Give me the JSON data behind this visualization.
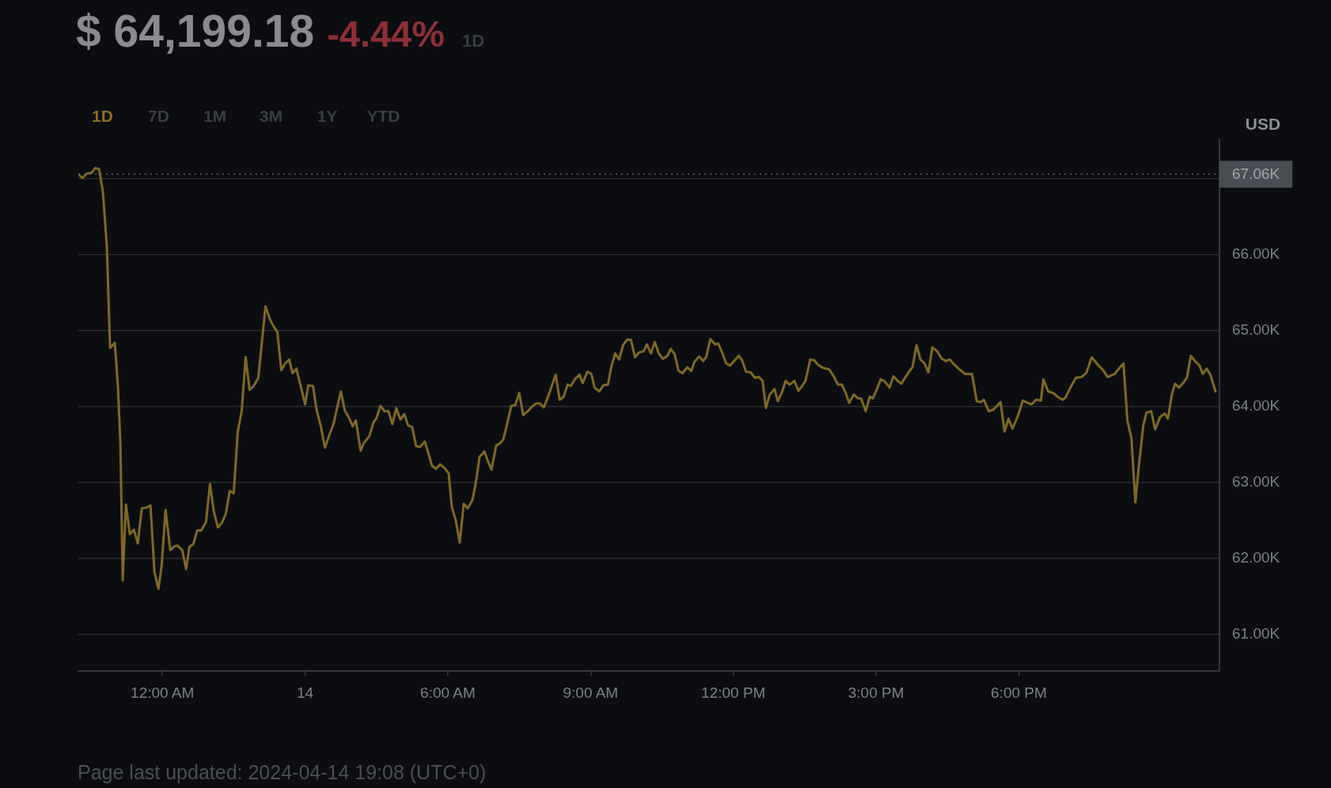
{
  "chart_data": {
    "type": "line",
    "title": "$ 64,199.18",
    "subtitle": "-4.44%",
    "ylabel": "USD",
    "annotations": [
      "1D",
      "1D",
      "7D",
      "1M",
      "3M",
      "1Y",
      "YTD",
      "Page last updated: 2024-04-14 19:08 (UTC+0)"
    ],
    "x": [
      "2024-04-13T22:14",
      "2024-04-13T22:19",
      "2024-04-13T22:25",
      "2024-04-13T22:31",
      "2024-04-13T22:35",
      "2024-04-13T22:40",
      "2024-04-13T22:45",
      "2024-04-13T22:50",
      "2024-04-13T22:54",
      "2024-04-13T23:00",
      "2024-04-13T23:04",
      "2024-04-13T23:07",
      "2024-04-13T23:10",
      "2024-04-13T23:14",
      "2024-04-13T23:19",
      "2024-04-13T23:24",
      "2024-04-13T23:29",
      "2024-04-13T23:34",
      "2024-04-13T23:40",
      "2024-04-13T23:45",
      "2024-04-13T23:50",
      "2024-04-13T23:55",
      "2024-04-13T23:59",
      "2024-04-14T00:04",
      "2024-04-14T00:10",
      "2024-04-14T00:15",
      "2024-04-14T00:19",
      "2024-04-14T00:25",
      "2024-04-14T00:30",
      "2024-04-14T00:34",
      "2024-04-14T00:39",
      "2024-04-14T00:44",
      "2024-04-14T00:49",
      "2024-04-14T00:55",
      "2024-04-14T01:00",
      "2024-04-14T01:05",
      "2024-04-14T01:10",
      "2024-04-14T01:15",
      "2024-04-14T01:20",
      "2024-04-14T01:25",
      "2024-04-14T01:30",
      "2024-04-14T01:35",
      "2024-04-14T01:40",
      "2024-04-14T01:45",
      "2024-04-14T01:50",
      "2024-04-14T01:55",
      "2024-04-14T02:01",
      "2024-04-14T02:10",
      "2024-04-14T02:16",
      "2024-04-14T02:20",
      "2024-04-14T02:25",
      "2024-04-14T02:30",
      "2024-04-14T02:35",
      "2024-04-14T02:40",
      "2024-04-14T02:44",
      "2024-04-14T02:49",
      "2024-04-14T02:54",
      "2024-04-14T03:00",
      "2024-04-14T03:04",
      "2024-04-14T03:10",
      "2024-04-14T03:14",
      "2024-04-14T03:20",
      "2024-04-14T03:25",
      "2024-04-14T03:30",
      "2024-04-14T03:36",
      "2024-04-14T03:45",
      "2024-04-14T03:50",
      "2024-04-14T03:55",
      "2024-04-14T04:00",
      "2024-04-14T04:04",
      "2024-04-14T04:10",
      "2024-04-14T04:14",
      "2024-04-14T04:21",
      "2024-04-14T04:26",
      "2024-04-14T04:30",
      "2024-04-14T04:35",
      "2024-04-14T04:40",
      "2024-04-14T04:45",
      "2024-04-14T04:50",
      "2024-04-14T04:55",
      "2024-04-14T05:00",
      "2024-04-14T05:05",
      "2024-04-14T05:10",
      "2024-04-14T05:15",
      "2024-04-14T05:20",
      "2024-04-14T05:25",
      "2024-04-14T05:31",
      "2024-04-14T05:35",
      "2024-04-14T05:40",
      "2024-04-14T05:45",
      "2024-04-14T05:50",
      "2024-04-14T05:56",
      "2024-04-14T06:01",
      "2024-04-14T06:05",
      "2024-04-14T06:10",
      "2024-04-14T06:15",
      "2024-04-14T06:20",
      "2024-04-14T06:25",
      "2024-04-14T06:31",
      "2024-04-14T06:35",
      "2024-04-14T06:40",
      "2024-04-14T06:44",
      "2024-04-14T06:46",
      "2024-04-14T06:51",
      "2024-04-14T06:55",
      "2024-04-14T07:01",
      "2024-04-14T07:05",
      "2024-04-14T07:10",
      "2024-04-14T07:14",
      "2024-04-14T07:20",
      "2024-04-14T07:25",
      "2024-04-14T07:30",
      "2024-04-14T07:35",
      "2024-04-14T07:41",
      "2024-04-14T07:46",
      "2024-04-14T07:51",
      "2024-04-14T07:56",
      "2024-04-14T08:01",
      "2024-04-14T08:06",
      "2024-04-14T08:11",
      "2024-04-14T08:16",
      "2024-04-14T08:21",
      "2024-04-14T08:26",
      "2024-04-14T08:31",
      "2024-04-14T08:35",
      "2024-04-14T08:40",
      "2024-04-14T08:46",
      "2024-04-14T08:50",
      "2024-04-14T08:56",
      "2024-04-14T09:01",
      "2024-04-14T09:05",
      "2024-04-14T09:11",
      "2024-04-14T09:16",
      "2024-04-14T09:22",
      "2024-04-14T09:26",
      "2024-04-14T09:31",
      "2024-04-14T09:36",
      "2024-04-14T09:41",
      "2024-04-14T09:46",
      "2024-04-14T09:51",
      "2024-04-14T09:56",
      "2024-04-14T10:01",
      "2024-04-14T10:07",
      "2024-04-14T10:11",
      "2024-04-14T10:16",
      "2024-04-14T10:21",
      "2024-04-14T10:26",
      "2024-04-14T10:31",
      "2024-04-14T10:37",
      "2024-04-14T10:41",
      "2024-04-14T10:46",
      "2024-04-14T10:51",
      "2024-04-14T10:56",
      "2024-04-14T11:02",
      "2024-04-14T11:07",
      "2024-04-14T11:11",
      "2024-04-14T11:17",
      "2024-04-14T11:22",
      "2024-04-14T11:26",
      "2024-04-14T11:31",
      "2024-04-14T11:37",
      "2024-04-14T11:41",
      "2024-04-14T11:46",
      "2024-04-14T11:51",
      "2024-04-14T11:56",
      "2024-04-14T12:01",
      "2024-04-14T12:07",
      "2024-04-14T12:11",
      "2024-04-14T12:16",
      "2024-04-14T12:22",
      "2024-04-14T12:27",
      "2024-04-14T12:32",
      "2024-04-14T12:37",
      "2024-04-14T12:41",
      "2024-04-14T12:46",
      "2024-04-14T12:52",
      "2024-04-14T12:56",
      "2024-04-14T13:01",
      "2024-04-14T13:06",
      "2024-04-14T13:11",
      "2024-04-14T13:17",
      "2024-04-14T13:22",
      "2024-04-14T13:26",
      "2024-04-14T13:31",
      "2024-04-14T13:37",
      "2024-04-14T13:42",
      "2024-04-14T13:47",
      "2024-04-14T13:53",
      "2024-04-14T14:01",
      "2024-04-14T14:07",
      "2024-04-14T14:12",
      "2024-04-14T14:17",
      "2024-04-14T14:22",
      "2024-04-14T14:26",
      "2024-04-14T14:32",
      "2024-04-14T14:37",
      "2024-04-14T14:41",
      "2024-04-14T14:47",
      "2024-04-14T14:52",
      "2024-04-14T14:56",
      "2024-04-14T15:01",
      "2024-04-14T15:06",
      "2024-04-14T15:11",
      "2024-04-14T15:17",
      "2024-04-14T15:22",
      "2024-04-14T15:27",
      "2024-04-14T15:32",
      "2024-04-14T15:37",
      "2024-04-14T15:43",
      "2024-04-14T15:46",
      "2024-04-14T15:51",
      "2024-04-14T15:56",
      "2024-04-14T16:01",
      "2024-04-14T16:06",
      "2024-04-14T16:11",
      "2024-04-14T16:17",
      "2024-04-14T16:23",
      "2024-04-14T16:28",
      "2024-04-14T16:33",
      "2024-04-14T16:38",
      "2024-04-14T16:44",
      "2024-04-14T16:52",
      "2024-04-14T17:01",
      "2024-04-14T17:07",
      "2024-04-14T17:12",
      "2024-04-14T17:16",
      "2024-04-14T17:22",
      "2024-04-14T17:28",
      "2024-04-14T17:37",
      "2024-04-14T17:42",
      "2024-04-14T17:47",
      "2024-04-14T17:52",
      "2024-04-14T17:59",
      "2024-04-14T18:05",
      "2024-04-14T18:11",
      "2024-04-14T18:16",
      "2024-04-14T18:22",
      "2024-04-14T18:28",
      "2024-04-14T18:31",
      "2024-04-14T18:37",
      "2024-04-14T18:43",
      "2024-04-14T18:49",
      "2024-04-14T18:55",
      "2024-04-14T18:59",
      "2024-04-14T19:05",
      "2024-04-14T19:12",
      "2024-04-14T19:19",
      "2024-04-14T19:25",
      "2024-04-14T19:32",
      "2024-04-14T19:39",
      "2024-04-14T19:47",
      "2024-04-14T19:52",
      "2024-04-14T20:01",
      "2024-04-14T20:07",
      "2024-04-14T20:12",
      "2024-04-14T20:17",
      "2024-04-14T20:22",
      "2024-04-14T20:27",
      "2024-04-14T20:31",
      "2024-04-14T20:37",
      "2024-04-14T20:41",
      "2024-04-14T20:47",
      "2024-04-14T20:52",
      "2024-04-14T20:58",
      "2024-04-14T21:04",
      "2024-04-14T21:08",
      "2024-04-14T21:13",
      "2024-04-14T21:17",
      "2024-04-14T21:22",
      "2024-04-14T21:28",
      "2024-04-14T21:32",
      "2024-04-14T21:37",
      "2024-04-14T21:43",
      "2024-04-14T21:48",
      "2024-04-14T21:52",
      "2024-04-14T21:57",
      "2024-04-14T22:02",
      "2024-04-14T22:08"
    ],
    "values": [
      67060,
      67010,
      67070,
      67080,
      67140,
      67130,
      66830,
      66100,
      64770,
      64840,
      64250,
      63520,
      61710,
      62710,
      62320,
      62380,
      62200,
      62660,
      62670,
      62700,
      61820,
      61600,
      61900,
      62640,
      62110,
      62160,
      62170,
      62110,
      61860,
      62150,
      62190,
      62370,
      62370,
      62480,
      62980,
      62610,
      62410,
      62470,
      62590,
      62890,
      62860,
      63670,
      63940,
      64650,
      64220,
      64270,
      64380,
      65320,
      65140,
      65060,
      64980,
      64480,
      64570,
      64620,
      64440,
      64500,
      64290,
      64030,
      64280,
      64270,
      63980,
      63730,
      63460,
      63610,
      63780,
      64200,
      63950,
      63860,
      63740,
      63820,
      63420,
      63520,
      63610,
      63790,
      63850,
      64010,
      63940,
      63940,
      63770,
      63980,
      63830,
      63900,
      63750,
      63730,
      63480,
      63470,
      63540,
      63400,
      63220,
      63180,
      63240,
      63190,
      63120,
      62680,
      62500,
      62210,
      62720,
      62660,
      62770,
      62980,
      63340,
      63380,
      63410,
      63270,
      63170,
      63490,
      63510,
      63570,
      63740,
      64010,
      64020,
      64180,
      63890,
      63940,
      64000,
      64040,
      64040,
      63990,
      64120,
      64270,
      64420,
      64090,
      64130,
      64290,
      64270,
      64360,
      64420,
      64310,
      64460,
      64430,
      64250,
      64200,
      64280,
      64290,
      64520,
      64700,
      64620,
      64810,
      64880,
      64880,
      64650,
      64710,
      64730,
      64820,
      64700,
      64850,
      64700,
      64630,
      64670,
      64760,
      64690,
      64470,
      64440,
      64520,
      64470,
      64590,
      64660,
      64600,
      64660,
      64890,
      64820,
      64830,
      64710,
      64570,
      64540,
      64600,
      64670,
      64610,
      64460,
      64450,
      64380,
      64390,
      64340,
      63980,
      64160,
      64230,
      64070,
      64180,
      64340,
      64290,
      64340,
      64210,
      64260,
      64340,
      64620,
      64610,
      64550,
      64510,
      64490,
      64390,
      64290,
      64290,
      64170,
      64050,
      64160,
      64110,
      64110,
      63940,
      64130,
      64110,
      64230,
      64360,
      64330,
      64250,
      64400,
      64340,
      64300,
      64390,
      64480,
      64520,
      64810,
      64620,
      64570,
      64450,
      64780,
      64730,
      64630,
      64600,
      64620,
      64560,
      64500,
      64430,
      64430,
      64070,
      64060,
      64090,
      63940,
      63960,
      64060,
      63670,
      63840,
      63710,
      63880,
      64080,
      64050,
      64030,
      64090,
      64080,
      64360,
      64200,
      64180,
      64130,
      64090,
      64120,
      64250,
      64380,
      64390,
      64440,
      64650,
      64560,
      64470,
      64390,
      64430,
      64510,
      64570,
      63810,
      63590,
      62740,
      63180,
      63750,
      63920,
      63940,
      63700,
      63860,
      63910,
      63840,
      64160,
      64300,
      64250,
      64320,
      64380,
      64670,
      64590,
      64540,
      64430,
      64500,
      64410,
      64200
    ],
    "color": "#806824",
    "xlim": [
      "2024-04-13T22:14",
      "2024-04-14T22:13"
    ],
    "xticks": [
      {
        "value": "2024-04-14T00:00",
        "label": "12:00 AM"
      },
      {
        "value": "2024-04-14T03:00",
        "label": "14"
      },
      {
        "value": "2024-04-14T06:00",
        "label": "6:00 AM"
      },
      {
        "value": "2024-04-14T09:00",
        "label": "9:00 AM"
      },
      {
        "value": "2024-04-14T12:00",
        "label": "12:00 PM"
      },
      {
        "value": "2024-04-14T15:00",
        "label": "3:00 PM"
      },
      {
        "value": "2024-04-14T18:00",
        "label": "6:00 PM"
      }
    ],
    "ylim": [
      60520,
      67510
    ],
    "yticks": [
      {
        "value": 61000,
        "label": "61.00K"
      },
      {
        "value": 62000,
        "label": "62.00K"
      },
      {
        "value": 63000,
        "label": "63.00K"
      },
      {
        "value": 64000,
        "label": "64.00K"
      },
      {
        "value": 65000,
        "label": "65.00K"
      },
      {
        "value": 66000,
        "label": "66.00K"
      },
      {
        "value": 67000,
        "label": null
      }
    ],
    "grid": "y",
    "marker": "none",
    "line_style": "solid",
    "ref_lines": [
      {
        "axis": "y",
        "value": 67060,
        "label": "67.06K",
        "color": "#5d6066",
        "line_style": "dotted"
      }
    ]
  }
}
